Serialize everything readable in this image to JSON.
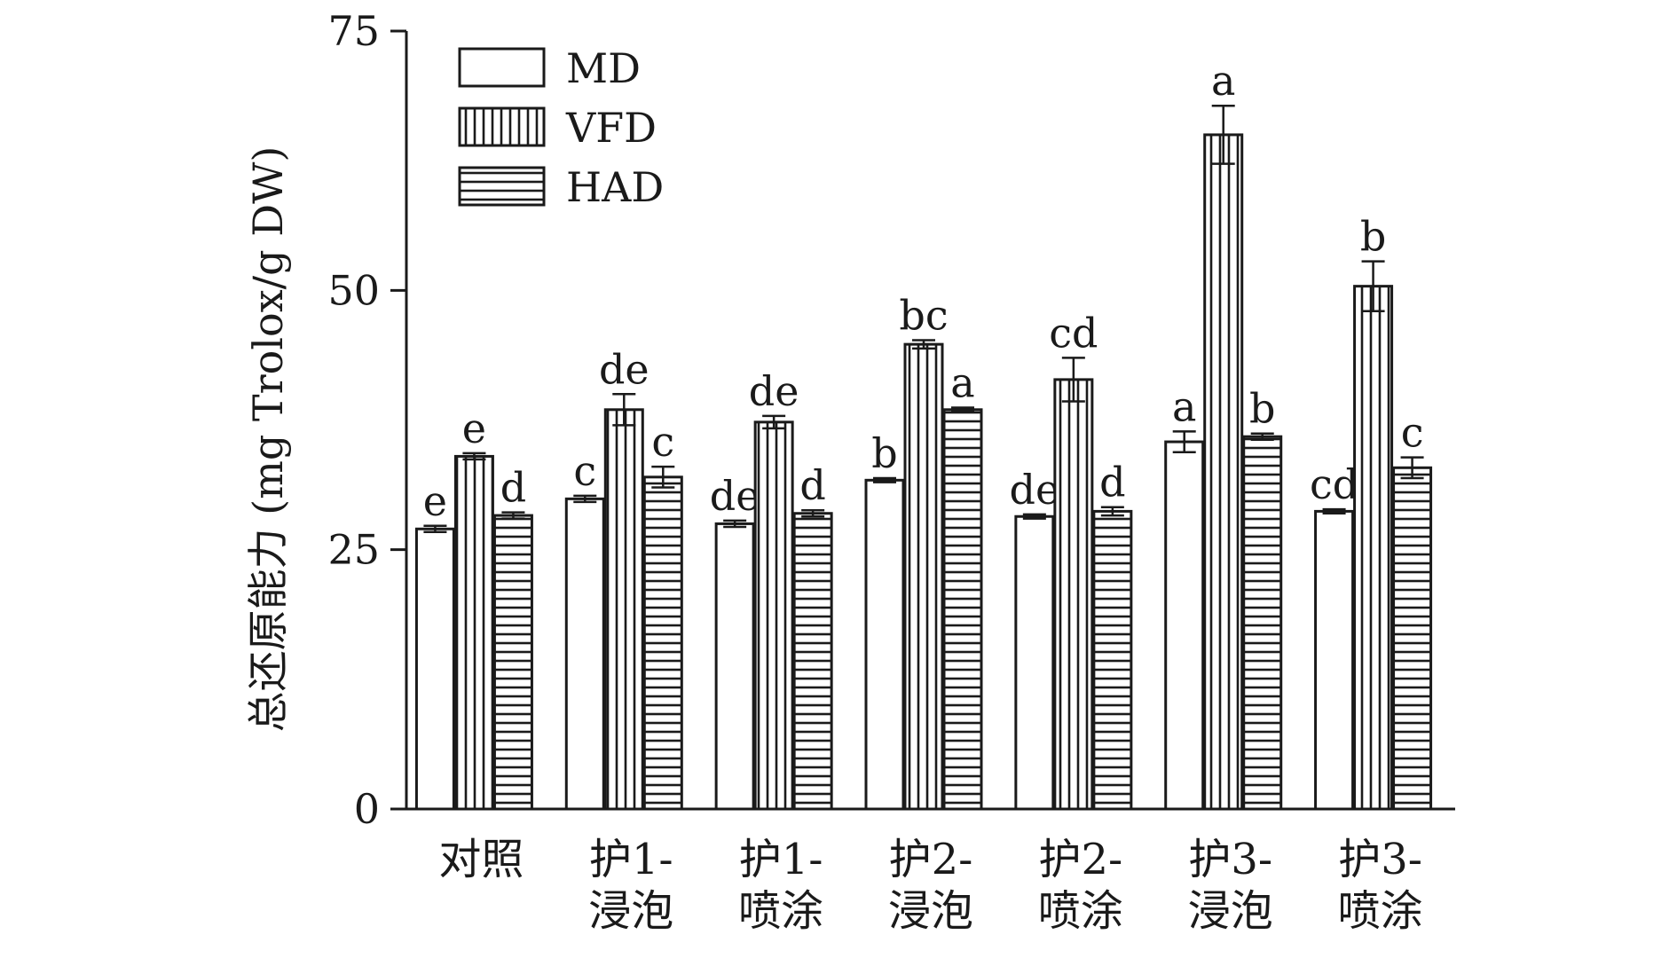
{
  "chart_data": {
    "type": "bar",
    "ylabel": "总还原能力 (mg Trolox/g DW)",
    "ylim": [
      0,
      75
    ],
    "yticks": [
      0,
      25,
      50,
      75
    ],
    "categories": [
      [
        "对照"
      ],
      [
        "护1-",
        "浸泡"
      ],
      [
        "护1-",
        "喷涂"
      ],
      [
        "护2-",
        "浸泡"
      ],
      [
        "护2-",
        "喷涂"
      ],
      [
        "护3-",
        "浸泡"
      ],
      [
        "护3-",
        "喷涂"
      ]
    ],
    "legend_position": "top-left",
    "series": [
      {
        "name": "MD",
        "pattern": "none",
        "values": [
          27.0,
          29.9,
          27.5,
          31.7,
          28.2,
          35.4,
          28.7
        ],
        "errors": [
          0.3,
          0.3,
          0.3,
          0.2,
          0.2,
          1.0,
          0.2
        ],
        "labels": [
          "e",
          "c",
          "de",
          "b",
          "de",
          "a",
          "cd"
        ]
      },
      {
        "name": "VFD",
        "pattern": "vertical",
        "values": [
          34.0,
          38.5,
          37.3,
          44.8,
          41.4,
          65.0,
          50.4
        ],
        "errors": [
          0.3,
          1.5,
          0.6,
          0.4,
          2.1,
          2.8,
          2.4
        ],
        "labels": [
          "e",
          "de",
          "de",
          "bc",
          "cd",
          "a",
          "b"
        ]
      },
      {
        "name": "HAD",
        "pattern": "horizontal",
        "values": [
          28.3,
          32.0,
          28.5,
          38.5,
          28.7,
          35.9,
          32.9
        ],
        "errors": [
          0.3,
          1.0,
          0.3,
          0.2,
          0.4,
          0.3,
          1.0
        ],
        "labels": [
          "d",
          "c",
          "d",
          "a",
          "d",
          "b",
          "c"
        ]
      }
    ]
  }
}
